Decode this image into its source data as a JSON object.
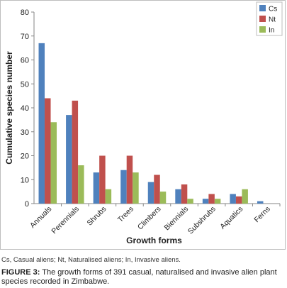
{
  "chart_data": {
    "type": "bar",
    "categories": [
      "Annuals",
      "Perennials",
      "Shrubs",
      "Trees",
      "Climbers",
      "Biennials",
      "Subshrubs",
      "Aquatics",
      "Ferns"
    ],
    "series": [
      {
        "name": "Cs",
        "color": "#4f81bd",
        "values": [
          67,
          37,
          13,
          14,
          9,
          6,
          2,
          4,
          1
        ]
      },
      {
        "name": "Nt",
        "color": "#c0504d",
        "values": [
          44,
          43,
          20,
          20,
          12,
          8,
          4,
          3,
          0
        ]
      },
      {
        "name": "In",
        "color": "#9bbb59",
        "values": [
          34,
          16,
          6,
          13,
          5,
          2,
          2,
          6,
          0
        ]
      }
    ],
    "xlabel": "Growth forms",
    "ylabel": "Cumulative species number",
    "ylim": [
      0,
      80
    ],
    "yticks": [
      0,
      10,
      20,
      30,
      40,
      50,
      60,
      70,
      80
    ],
    "grid": false,
    "legend_position": "top-right"
  },
  "footnote": "Cs, Casual aliens; Nt, Naturalised aliens; In, Invasive aliens.",
  "caption": {
    "label": "FIGURE 3:",
    "text": " The growth forms of 391 casual, naturalised and invasive alien plant species recorded in Zimbabwe."
  }
}
